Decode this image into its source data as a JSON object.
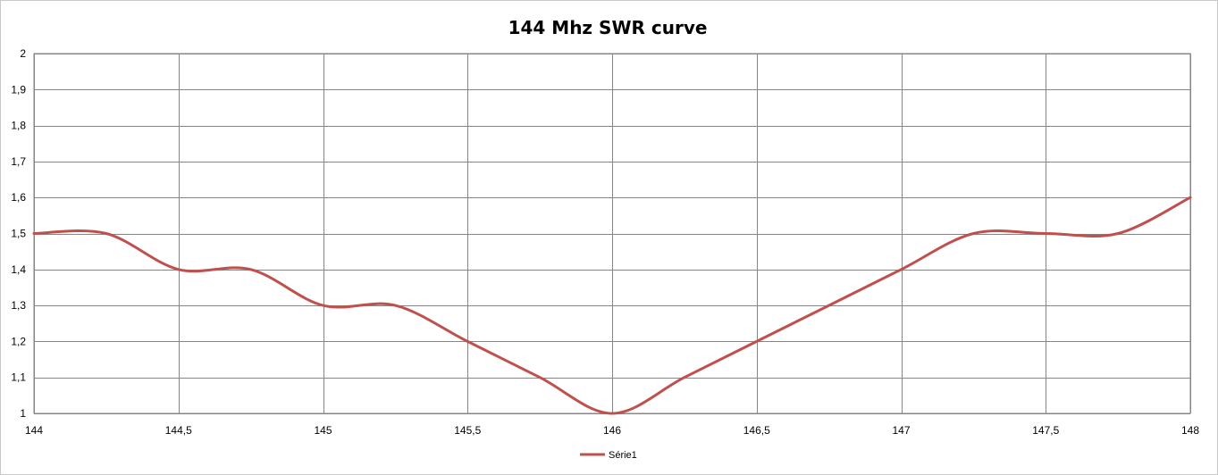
{
  "chart_data": {
    "type": "line",
    "title": "144 Mhz SWR curve",
    "xlabel": "",
    "ylabel": "",
    "xlim": [
      144,
      148
    ],
    "ylim": [
      1,
      2
    ],
    "x_ticks": [
      144,
      144.5,
      145,
      145.5,
      146,
      146.5,
      147,
      147.5,
      148
    ],
    "x_tick_labels": [
      "144",
      "144,5",
      "145",
      "145,5",
      "146",
      "146,5",
      "147",
      "147,5",
      "148"
    ],
    "y_ticks": [
      1,
      1.1,
      1.2,
      1.3,
      1.4,
      1.5,
      1.6,
      1.7,
      1.8,
      1.9,
      2
    ],
    "y_tick_labels": [
      "1",
      "1,1",
      "1,2",
      "1,3",
      "1,4",
      "1,5",
      "1,6",
      "1,7",
      "1,8",
      "1,9",
      "2"
    ],
    "grid": true,
    "smooth": true,
    "legend_position": "bottom",
    "series": [
      {
        "name": "Série1",
        "color": "#c0504d",
        "x": [
          144,
          144.25,
          144.5,
          144.75,
          145,
          145.25,
          145.5,
          145.75,
          146,
          146.25,
          146.5,
          146.75,
          147,
          147.25,
          147.5,
          147.75,
          148
        ],
        "y": [
          1.5,
          1.5,
          1.4,
          1.4,
          1.3,
          1.3,
          1.2,
          1.1,
          1.0,
          1.1,
          1.2,
          1.3,
          1.4,
          1.5,
          1.5,
          1.5,
          1.6
        ]
      }
    ]
  }
}
